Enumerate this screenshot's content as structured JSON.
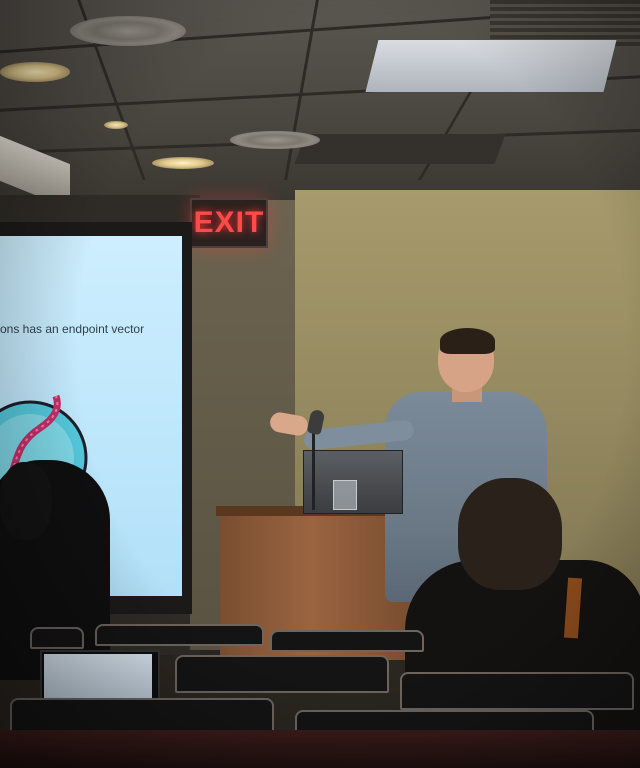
{
  "photo": {
    "exit_sign_text": "EXIT",
    "slide_text": "ons has an endpoint vector"
  },
  "colors": {
    "exit_red": "#ff4a4a",
    "screen_blue": "#c7ebfd",
    "diagram_teal": "#3fbcd0",
    "diagram_magenta": "#c0306a",
    "shirt_blue_gray": "#6c7a88",
    "podium_wood": "#8a5838"
  }
}
